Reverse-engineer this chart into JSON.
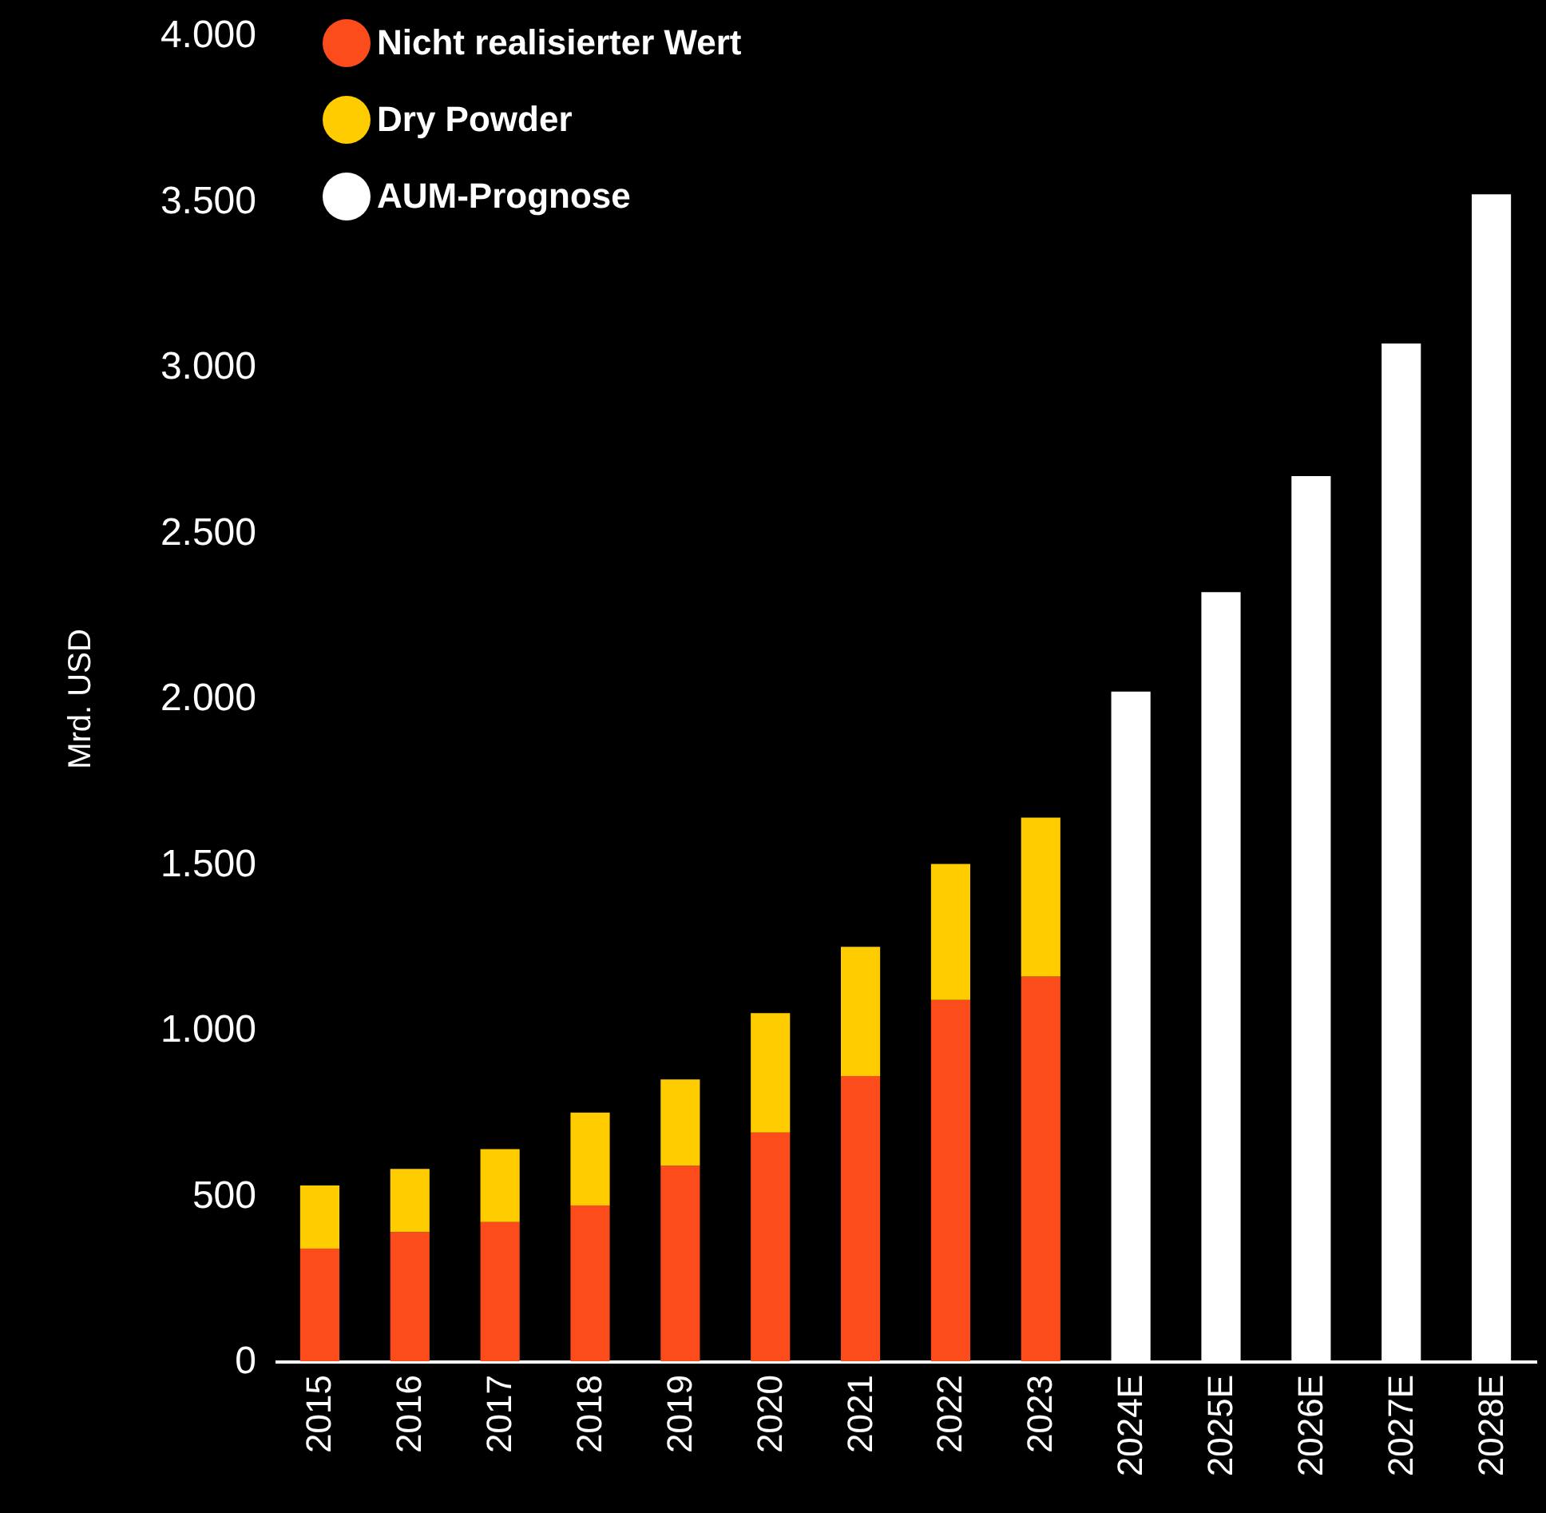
{
  "chart_data": {
    "type": "bar",
    "stacked": true,
    "ylabel": "Mrd. USD",
    "categories": [
      "2015",
      "2016",
      "2017",
      "2018",
      "2019",
      "2020",
      "2021",
      "2022",
      "2023",
      "2024E",
      "2025E",
      "2026E",
      "2027E",
      "2028E"
    ],
    "series": [
      {
        "name": "Nicht realisierter Wert",
        "color": "#fc4c1c",
        "values": [
          340,
          390,
          420,
          470,
          590,
          690,
          860,
          1090,
          1160,
          null,
          null,
          null,
          null,
          null
        ]
      },
      {
        "name": "Dry Powder",
        "color": "#ffcc00",
        "values": [
          190,
          190,
          220,
          280,
          260,
          360,
          390,
          410,
          480,
          null,
          null,
          null,
          null,
          null
        ]
      },
      {
        "name": "AUM-Prognose",
        "color": "#ffffff",
        "values": [
          null,
          null,
          null,
          null,
          null,
          null,
          null,
          null,
          null,
          2020,
          2320,
          2670,
          3070,
          3520
        ]
      }
    ],
    "ylim": [
      0,
      4000
    ],
    "yticks": [
      0,
      500,
      {
        "value": 1000,
        "label": "1.000"
      },
      {
        "value": 1500,
        "label": "1.500"
      },
      {
        "value": 2000,
        "label": "2.000"
      },
      {
        "value": 2500,
        "label": "2.500"
      },
      {
        "value": 3000,
        "label": "3.000"
      },
      {
        "value": 3500,
        "label": "3.500"
      },
      {
        "value": 4000,
        "label": "4.000"
      }
    ],
    "grid": false,
    "legend": "top left"
  }
}
